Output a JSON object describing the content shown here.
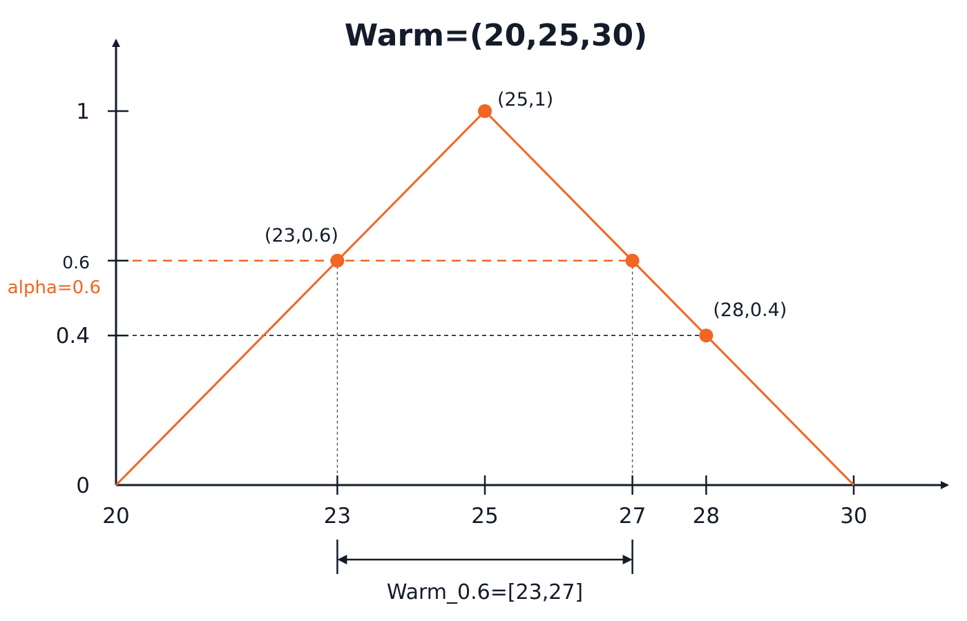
{
  "chart_data": {
    "type": "line",
    "title": "Warm=(20,25,30)",
    "xlabel": "",
    "ylabel": "",
    "xlim": [
      20,
      30
    ],
    "ylim": [
      0,
      1
    ],
    "grid": false,
    "x_ticks": [
      "20",
      "23",
      "25",
      "27",
      "28",
      "30"
    ],
    "y_ticks": [
      "0",
      "0.4",
      "0.6",
      "1"
    ],
    "series": [
      {
        "x": [
          20,
          25,
          30
        ],
        "y": [
          0,
          1,
          0
        ]
      }
    ],
    "highlight_points": [
      {
        "x": 25,
        "y": 1,
        "label": "(25,1)"
      },
      {
        "x": 23,
        "y": 0.6,
        "label": "(23,0.6)"
      },
      {
        "x": 27,
        "y": 0.6,
        "label": ""
      },
      {
        "x": 28,
        "y": 0.4,
        "label": "(28,0.4)"
      }
    ],
    "alpha_cut": {
      "level": 0.6,
      "label": "alpha=0.6",
      "interval": [
        23,
        27
      ],
      "interval_label": "Warm_0.6=[23,27]"
    },
    "reference_level": {
      "level": 0.4,
      "x_at": 28
    },
    "colors": {
      "series": "#f26522",
      "axis": "#141c2b",
      "guide": "#555555"
    }
  }
}
